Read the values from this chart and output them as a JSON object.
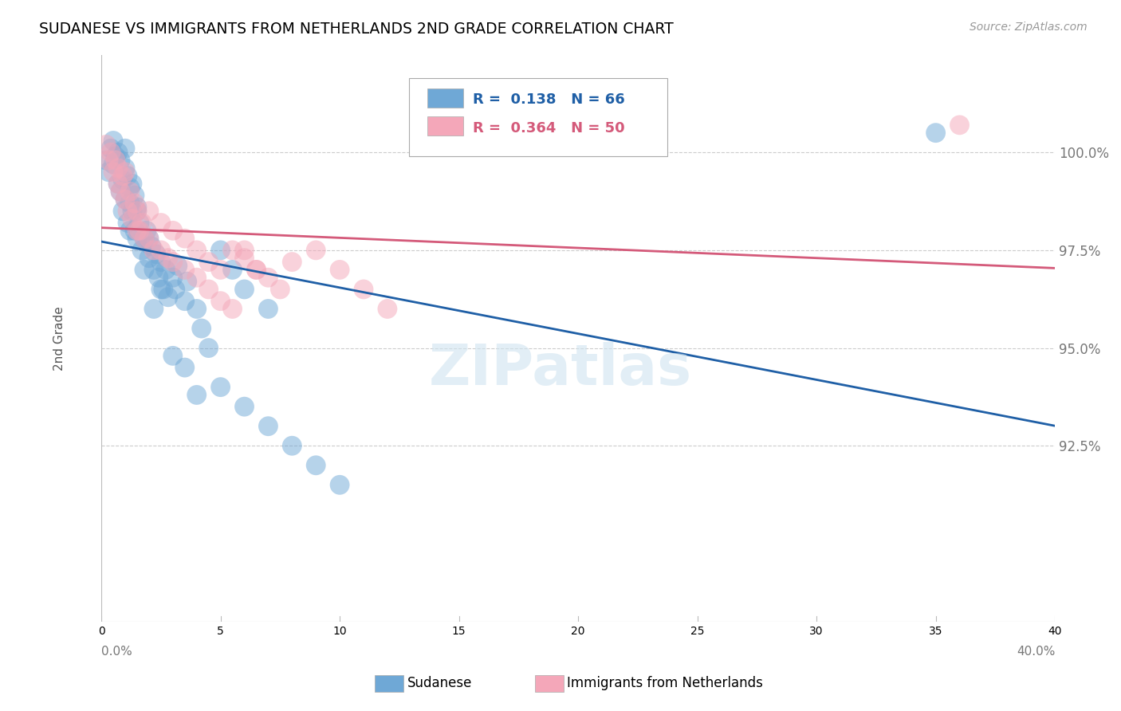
{
  "title": "SUDANESE VS IMMIGRANTS FROM NETHERLANDS 2ND GRADE CORRELATION CHART",
  "source": "Source: ZipAtlas.com",
  "ylabel": "2nd Grade",
  "xlim": [
    0.0,
    40.0
  ],
  "ylim": [
    88.0,
    102.5
  ],
  "yticks": [
    92.5,
    95.0,
    97.5,
    100.0
  ],
  "ytick_labels": [
    "92.5%",
    "95.0%",
    "97.5%",
    "100.0%"
  ],
  "blue_R": 0.138,
  "blue_N": 66,
  "pink_R": 0.364,
  "pink_N": 50,
  "blue_color": "#6fa8d6",
  "pink_color": "#f4a7b9",
  "blue_line_color": "#1f5fa6",
  "pink_line_color": "#d45a7a",
  "legend_label_blue": "Sudanese",
  "legend_label_pink": "Immigrants from Netherlands",
  "blue_points_x": [
    0.2,
    0.3,
    0.4,
    0.5,
    0.5,
    0.6,
    0.7,
    0.7,
    0.8,
    0.8,
    0.9,
    0.9,
    1.0,
    1.0,
    1.0,
    1.1,
    1.1,
    1.2,
    1.2,
    1.3,
    1.3,
    1.4,
    1.4,
    1.5,
    1.5,
    1.6,
    1.7,
    1.8,
    1.9,
    2.0,
    2.1,
    2.2,
    2.3,
    2.4,
    2.5,
    2.6,
    2.7,
    2.8,
    3.0,
    3.1,
    3.2,
    3.5,
    3.6,
    4.0,
    4.2,
    4.5,
    5.0,
    5.5,
    6.0,
    7.0,
    1.2,
    1.5,
    1.8,
    2.0,
    2.2,
    2.5,
    3.0,
    3.5,
    4.0,
    5.0,
    6.0,
    7.0,
    8.0,
    9.0,
    10.0,
    35.0
  ],
  "blue_points_y": [
    99.8,
    99.5,
    100.1,
    99.7,
    100.3,
    99.9,
    100.0,
    99.2,
    99.8,
    99.0,
    98.5,
    99.3,
    98.8,
    99.6,
    100.1,
    99.4,
    98.2,
    98.7,
    99.1,
    98.5,
    99.2,
    98.0,
    98.9,
    97.8,
    98.6,
    98.2,
    97.5,
    97.8,
    98.0,
    97.3,
    97.6,
    97.0,
    97.4,
    96.8,
    97.2,
    96.5,
    97.0,
    96.3,
    96.8,
    96.5,
    97.1,
    96.2,
    96.7,
    96.0,
    95.5,
    95.0,
    97.5,
    97.0,
    96.5,
    96.0,
    98.0,
    98.5,
    97.0,
    97.8,
    96.0,
    96.5,
    94.8,
    94.5,
    93.8,
    94.0,
    93.5,
    93.0,
    92.5,
    92.0,
    91.5,
    100.5
  ],
  "pink_points_x": [
    0.2,
    0.3,
    0.4,
    0.5,
    0.6,
    0.7,
    0.7,
    0.8,
    0.9,
    1.0,
    1.0,
    1.1,
    1.2,
    1.3,
    1.4,
    1.5,
    1.6,
    1.7,
    1.8,
    2.0,
    2.2,
    2.5,
    2.8,
    3.0,
    3.5,
    4.0,
    4.5,
    5.0,
    5.5,
    6.0,
    6.5,
    7.0,
    8.0,
    9.0,
    10.0,
    11.0,
    12.0,
    1.5,
    2.0,
    2.5,
    3.0,
    3.5,
    4.0,
    4.5,
    5.0,
    5.5,
    6.0,
    6.5,
    7.5,
    36.0
  ],
  "pink_points_y": [
    100.2,
    99.8,
    100.0,
    99.5,
    99.8,
    99.2,
    99.6,
    99.0,
    99.4,
    98.8,
    99.5,
    98.5,
    99.0,
    98.3,
    98.7,
    98.5,
    98.0,
    98.2,
    97.8,
    98.5,
    97.5,
    98.2,
    97.3,
    98.0,
    97.8,
    97.5,
    97.2,
    97.0,
    97.5,
    97.3,
    97.0,
    96.8,
    97.2,
    97.5,
    97.0,
    96.5,
    96.0,
    98.0,
    97.8,
    97.5,
    97.2,
    97.0,
    96.8,
    96.5,
    96.2,
    96.0,
    97.5,
    97.0,
    96.5,
    100.7
  ]
}
